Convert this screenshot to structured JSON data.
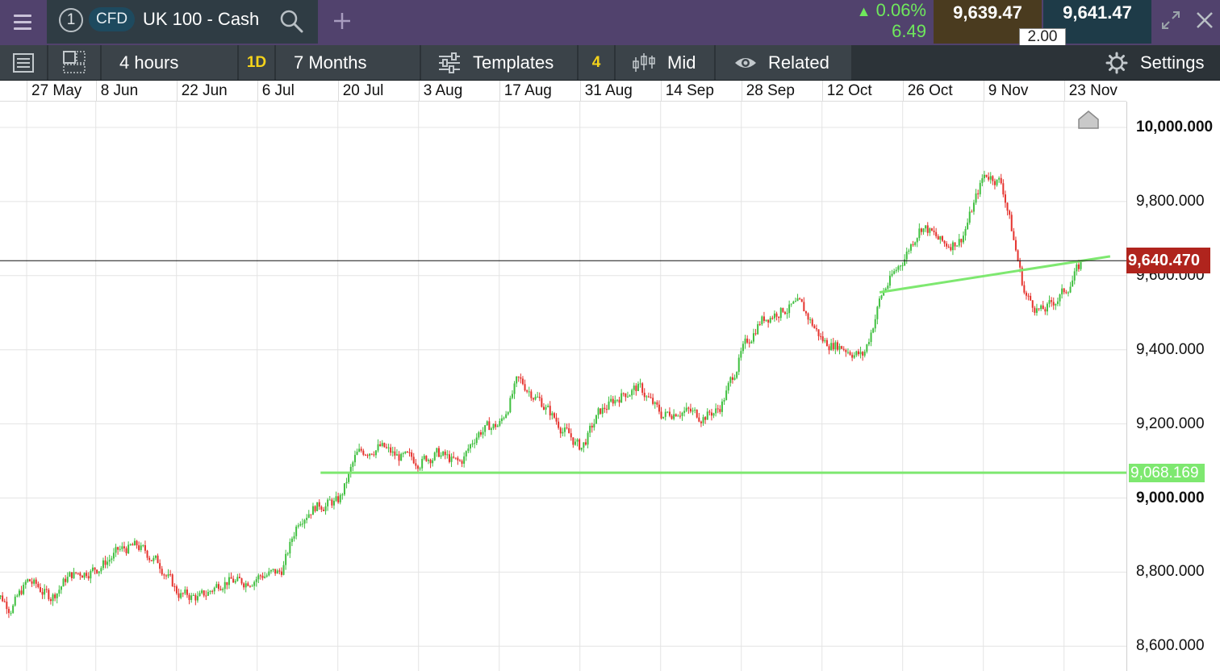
{
  "header": {
    "tab_number": "1",
    "instrument_type": "CFD",
    "instrument_name": "UK 100 - Cash",
    "change_percent": "0.06%",
    "change_absolute": "6.49",
    "sell_price": "9,639.47",
    "buy_price": "9,641.47",
    "spread": "2.00",
    "icons": [
      "menu-icon",
      "search-icon",
      "plus-icon",
      "expand-icon",
      "close-icon"
    ],
    "colors": {
      "header_bg": "#51426d",
      "positive": "#6fe85c",
      "sell_bg": "#4a3b1f",
      "buy_bg": "#1e3b48"
    }
  },
  "toolbar": {
    "interval": "4 hours",
    "interval_badge": "1D",
    "range": "7 Months",
    "templates": "Templates",
    "templates_count": "4",
    "price_type": "Mid",
    "related": "Related",
    "settings": "Settings",
    "icons": [
      "list-icon",
      "layout-icon",
      "sliders-icon",
      "candles-icon",
      "eye-icon",
      "gear-icon"
    ]
  },
  "chart_data": {
    "type": "candlestick",
    "x_axis_dates": [
      "27 May",
      "8 Jun",
      "22 Jun",
      "6 Jul",
      "20 Jul",
      "3 Aug",
      "17 Aug",
      "31 Aug",
      "14 Sep",
      "28 Sep",
      "12 Oct",
      "26 Oct",
      "9 Nov",
      "23 Nov"
    ],
    "y_ticks": [
      {
        "value": 10000,
        "label": "10,000.000",
        "major": true
      },
      {
        "value": 9800,
        "label": "9,800.000",
        "major": false
      },
      {
        "value": 9600,
        "label": "9,600.000",
        "major": false
      },
      {
        "value": 9400,
        "label": "9,400.000",
        "major": false
      },
      {
        "value": 9200,
        "label": "9,200.000",
        "major": false
      },
      {
        "value": 9000,
        "label": "9,000.000",
        "major": true
      },
      {
        "value": 8800,
        "label": "8,800.000",
        "major": false
      },
      {
        "value": 8600,
        "label": "8,600.000",
        "major": false
      }
    ],
    "ylim": [
      8580,
      10065
    ],
    "current_price": {
      "value": 9640.47,
      "label": "9,640.470"
    },
    "support_level": {
      "value": 9068.169,
      "label": "9,068.169",
      "from_date": "17 Jul"
    },
    "trendline": {
      "from": {
        "date": "22 Oct",
        "value": 9555
      },
      "to": {
        "date": "1 Dec",
        "value": 9652
      }
    },
    "close_path": [
      [
        "21 May",
        8760
      ],
      [
        "24 May",
        8700
      ],
      [
        "27 May",
        8780
      ],
      [
        "31 May",
        8730
      ],
      [
        "3 Jun",
        8790
      ],
      [
        "8 Jun",
        8810
      ],
      [
        "12 Jun",
        8860
      ],
      [
        "15 Jun",
        8870
      ],
      [
        "19 Jun",
        8820
      ],
      [
        "22 Jun",
        8740
      ],
      [
        "26 Jun",
        8730
      ],
      [
        "30 Jun",
        8780
      ],
      [
        "3 Jul",
        8770
      ],
      [
        "6 Jul",
        8790
      ],
      [
        "10 Jul",
        8800
      ],
      [
        "13 Jul",
        8950
      ],
      [
        "16 Jul",
        8980
      ],
      [
        "20 Jul",
        8990
      ],
      [
        "23 Jul",
        9120
      ],
      [
        "27 Jul",
        9140
      ],
      [
        "30 Jul",
        9110
      ],
      [
        "3 Aug",
        9100
      ],
      [
        "6 Aug",
        9120
      ],
      [
        "10 Aug",
        9090
      ],
      [
        "13 Aug",
        9180
      ],
      [
        "17 Aug",
        9200
      ],
      [
        "20 Aug",
        9320
      ],
      [
        "24 Aug",
        9260
      ],
      [
        "27 Aug",
        9200
      ],
      [
        "31 Aug",
        9130
      ],
      [
        "3 Sep",
        9230
      ],
      [
        "7 Sep",
        9280
      ],
      [
        "10 Sep",
        9300
      ],
      [
        "14 Sep",
        9220
      ],
      [
        "17 Sep",
        9240
      ],
      [
        "21 Sep",
        9220
      ],
      [
        "24 Sep",
        9240
      ],
      [
        "28 Sep",
        9400
      ],
      [
        "1 Oct",
        9480
      ],
      [
        "5 Oct",
        9510
      ],
      [
        "8 Oct",
        9520
      ],
      [
        "12 Oct",
        9420
      ],
      [
        "15 Oct",
        9410
      ],
      [
        "19 Oct",
        9380
      ],
      [
        "22 Oct",
        9550
      ],
      [
        "26 Oct",
        9650
      ],
      [
        "29 Oct",
        9740
      ],
      [
        "2 Nov",
        9680
      ],
      [
        "5 Nov",
        9700
      ],
      [
        "9 Nov",
        9880
      ],
      [
        "12 Nov",
        9850
      ],
      [
        "16 Nov",
        9540
      ],
      [
        "19 Nov",
        9500
      ],
      [
        "23 Nov",
        9560
      ],
      [
        "26 Nov",
        9640
      ]
    ],
    "colors": {
      "up": "#3fbf3f",
      "down": "#e5322d",
      "trendline": "#7ee870",
      "price_line": "#111111",
      "grid": "#e4e4e4"
    }
  }
}
